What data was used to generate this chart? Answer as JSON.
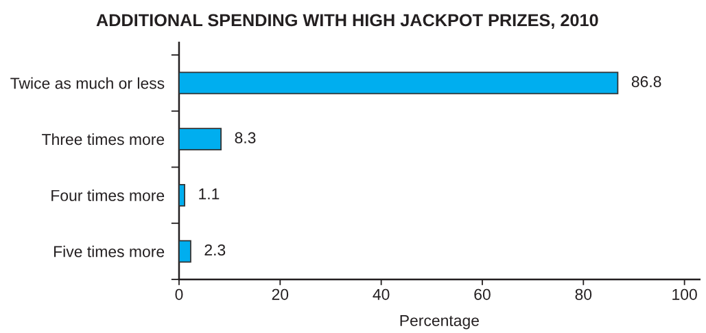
{
  "chart_data": {
    "type": "bar",
    "orientation": "horizontal",
    "title": "ADDITIONAL SPENDING WITH HIGH JACKPOT PRIZES, 2010",
    "xlabel": "Percentage",
    "categories": [
      "Twice as much or less",
      "Three times more",
      "Four times more",
      "Five times more"
    ],
    "values": [
      86.8,
      8.3,
      1.1,
      2.3
    ],
    "color": "#00aeef",
    "xlim": [
      0,
      103
    ],
    "xticks": [
      0,
      20,
      40,
      60,
      80,
      100
    ],
    "data_labels": true
  }
}
